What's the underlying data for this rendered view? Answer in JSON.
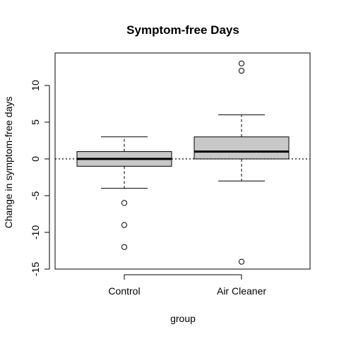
{
  "chart_data": {
    "type": "boxplot",
    "title": "Symptom-free Days",
    "xlabel": "group",
    "ylabel": "Change in symptom-free days",
    "categories": [
      "Control",
      "Air Cleaner"
    ],
    "ylim": [
      -15,
      14
    ],
    "yticks": [
      -15,
      -10,
      -5,
      0,
      5,
      10
    ],
    "reference_line": 0,
    "grid": false,
    "box_fill": "#c8c8c8",
    "boxes": [
      {
        "category": "Control",
        "whisker_low": -4,
        "q1": -1,
        "median": 0,
        "q3": 1,
        "whisker_high": 3,
        "outliers": [
          -6,
          -9,
          -12
        ]
      },
      {
        "category": "Air Cleaner",
        "whisker_low": -3,
        "q1": 0,
        "median": 1,
        "q3": 3,
        "whisker_high": 6,
        "outliers": [
          13,
          12,
          -14
        ]
      }
    ]
  }
}
